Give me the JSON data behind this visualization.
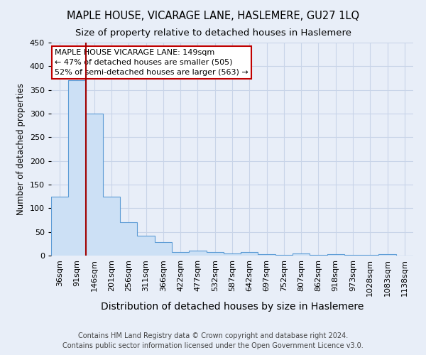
{
  "title": "MAPLE HOUSE, VICARAGE LANE, HASLEMERE, GU27 1LQ",
  "subtitle": "Size of property relative to detached houses in Haslemere",
  "xlabel": "Distribution of detached houses by size in Haslemere",
  "ylabel": "Number of detached properties",
  "footer1": "Contains HM Land Registry data © Crown copyright and database right 2024.",
  "footer2": "Contains public sector information licensed under the Open Government Licence v3.0.",
  "bin_labels": [
    "36sqm",
    "91sqm",
    "146sqm",
    "201sqm",
    "256sqm",
    "311sqm",
    "366sqm",
    "422sqm",
    "477sqm",
    "532sqm",
    "587sqm",
    "642sqm",
    "697sqm",
    "752sqm",
    "807sqm",
    "862sqm",
    "918sqm",
    "973sqm",
    "1028sqm",
    "1083sqm",
    "1138sqm"
  ],
  "bar_heights": [
    125,
    370,
    300,
    125,
    70,
    42,
    28,
    8,
    10,
    8,
    5,
    7,
    3,
    1,
    4,
    1,
    3,
    1,
    1,
    3,
    0
  ],
  "bar_color": "#cce0f5",
  "bar_edge_color": "#5b9bd5",
  "vline_pos": 1,
  "vline_color": "#a00000",
  "annotation_text": "MAPLE HOUSE VICARAGE LANE: 149sqm\n← 47% of detached houses are smaller (505)\n52% of semi-detached houses are larger (563) →",
  "annotation_box_color": "white",
  "annotation_box_edge_color": "#c00000",
  "ylim": [
    0,
    450
  ],
  "yticks": [
    0,
    50,
    100,
    150,
    200,
    250,
    300,
    350,
    400,
    450
  ],
  "grid_color": "#c8d4e8",
  "bg_color": "#e8eef8",
  "plot_bg_color": "#e8eef8",
  "title_fontsize": 10.5,
  "subtitle_fontsize": 9.5,
  "xlabel_fontsize": 10,
  "ylabel_fontsize": 8.5,
  "tick_fontsize": 8,
  "annotation_fontsize": 8,
  "footer_fontsize": 7
}
